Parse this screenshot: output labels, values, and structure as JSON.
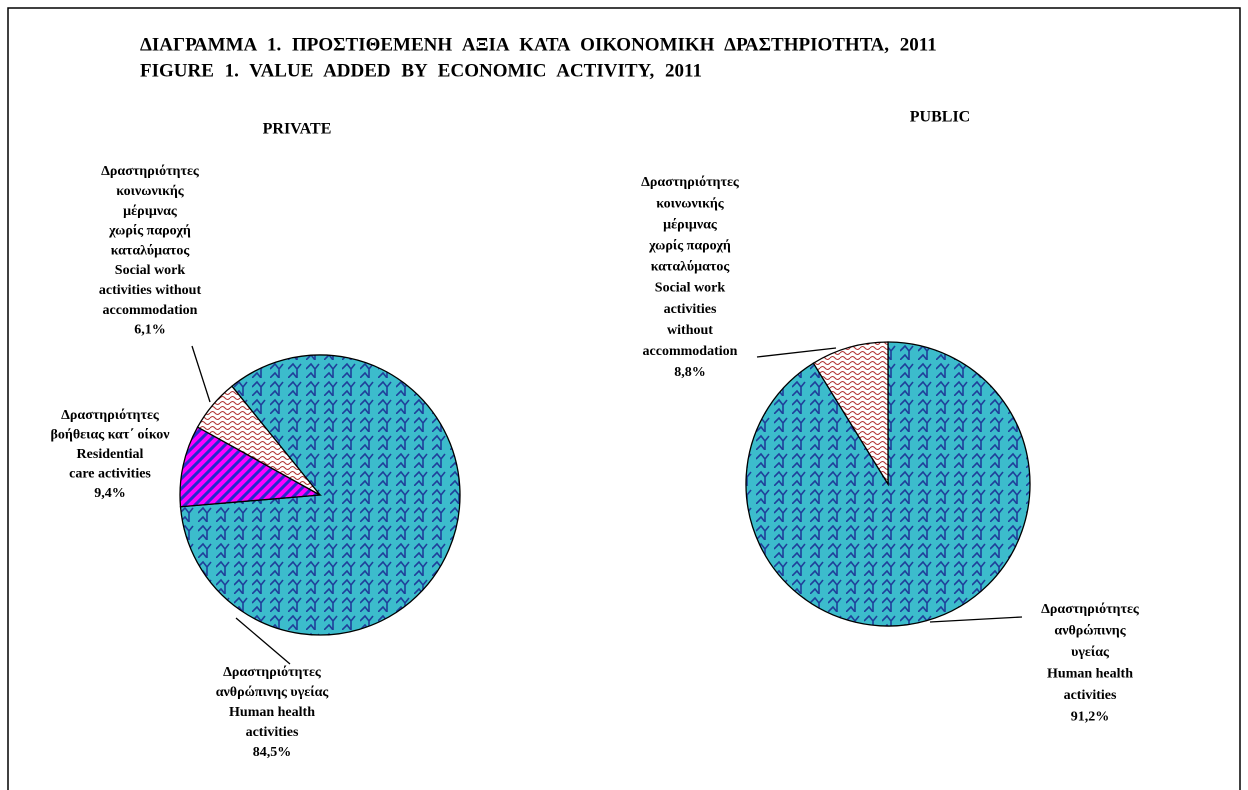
{
  "header": {
    "title_gr": "ΔΙΑΓΡΑΜΜΑ 1. ΠΡΟΣΤΙΘΕΜΕΝΗ ΑΞΙΑ ΚΑΤΑ ΟΙΚΟΝΟΜΙΚΗ ΔΡΑΣΤΗΡΙΟΤΗΤΑ, 2011",
    "title_en": "FIGURE 1. VALUE ADDED BY ECONOMIC ACTIVITY, 2011"
  },
  "chart_data": [
    {
      "type": "pie",
      "title": "PRIVATE",
      "categories": [
        [
          "Δραστηριότητες",
          "ανθρώπινης υγείας",
          "Human health",
          "activities"
        ],
        [
          "Δραστηριότητες",
          "βοήθειας κατ΄ οίκον",
          "Residential",
          "care activities"
        ],
        [
          "Δραστηριότητες",
          "κοινωνικής",
          "μέριμνας",
          "χωρίς παροχή",
          "καταλύματος",
          "Social work",
          "activities without",
          "accommodation"
        ]
      ],
      "values": [
        84.5,
        9.4,
        6.1
      ],
      "value_labels": [
        "84,5%",
        "9,4%",
        "6,1%"
      ],
      "colors": [
        "#3cbccc",
        "#ff00ff",
        "#ffffff"
      ]
    },
    {
      "type": "pie",
      "title": "PUBLIC",
      "categories": [
        [
          "Δραστηριότητες",
          "ανθρώπινης",
          "υγείας",
          "Human health",
          "activities"
        ],
        [
          "Δραστηριότητες",
          "κοινωνικής",
          "μέριμνας",
          "χωρίς παροχή",
          "καταλύματος",
          "Social work",
          "activities",
          "without",
          "accommodation"
        ]
      ],
      "values": [
        91.2,
        8.8
      ],
      "value_labels": [
        "91,2%",
        "8,8%"
      ],
      "colors": [
        "#3cbccc",
        "#ffffff"
      ]
    }
  ]
}
